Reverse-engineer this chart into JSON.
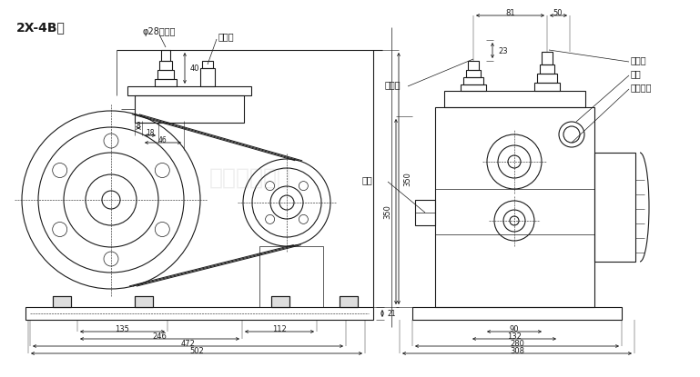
{
  "title": "2X-4B型",
  "bg_color": "#ffffff",
  "line_color": "#1a1a1a",
  "watermark": "永嘉龙洋泵业",
  "left": {
    "inlet_label": "φ28进气嘴",
    "exhaust_label": "排气嘴",
    "dim_8": "8",
    "dim_18": "18",
    "dim_46": "46",
    "dim_40": "40",
    "dim_350": "350",
    "dim_135": "135",
    "dim_246": "246",
    "dim_112": "112",
    "dim_472": "472",
    "dim_502": "502",
    "dim_21": "21"
  },
  "right": {
    "exhaust_label": "排气嘴",
    "inlet_label": "进气嘴",
    "oil_window_label": "油窗",
    "oil_plug_label": "放油螺塞",
    "gas_lock_label": "气锁",
    "dim_81": "81",
    "dim_50": "50",
    "dim_23": "23",
    "dim_90": "90",
    "dim_132": "132",
    "dim_280": "280",
    "dim_308": "308"
  }
}
